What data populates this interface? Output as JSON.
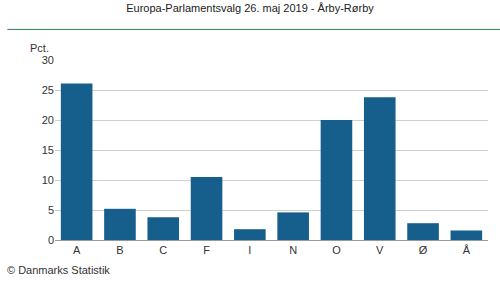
{
  "chart_data": {
    "type": "bar",
    "title": "Europa-Parlamentsvalg 26. maj 2019 - Årby-Rørby",
    "ylabel": "Pct.",
    "categories": [
      "A",
      "B",
      "C",
      "F",
      "I",
      "N",
      "O",
      "V",
      "Ø",
      "Å"
    ],
    "values": [
      26.1,
      5.2,
      3.8,
      10.5,
      1.8,
      4.6,
      20.0,
      23.8,
      2.8,
      1.6
    ],
    "color": "#165e8c",
    "ylim": [
      0,
      30
    ],
    "yticks": [
      0,
      5,
      10,
      15,
      20,
      25,
      30
    ],
    "grid": true,
    "annotations": [
      "© Danmarks Statistik"
    ]
  }
}
